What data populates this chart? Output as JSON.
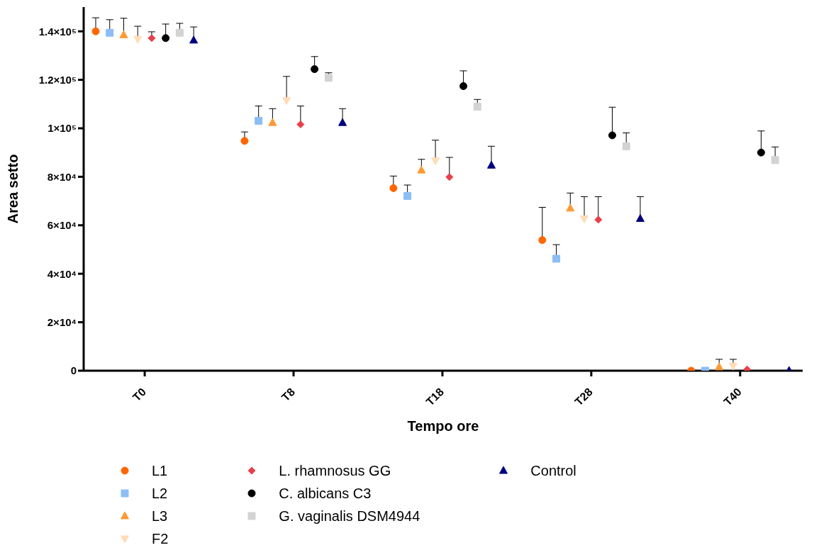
{
  "chart_data": {
    "type": "scatter",
    "xlabel": "Tempo ore",
    "ylabel": "Area setto",
    "categories": [
      "T0",
      "T8",
      "T18",
      "T28",
      "T40"
    ],
    "ylim": [
      0,
      150000
    ],
    "yticks": [
      0,
      {
        "value": 20000,
        "label": "2×10⁴"
      },
      {
        "value": 40000,
        "label": "4×10⁴"
      },
      {
        "value": 60000,
        "label": "6×10⁴"
      },
      {
        "value": 80000,
        "label": "8×10⁴"
      },
      {
        "value": 100000,
        "label": "1×10⁵"
      },
      {
        "value": 120000,
        "label": "1.2×10⁵"
      },
      {
        "value": 140000,
        "label": "1.4×10⁵"
      }
    ],
    "legend": "bottom",
    "series": [
      {
        "name": "L1",
        "color": "#ff6600",
        "marker": "circle",
        "values": [
          140000,
          94800,
          75300,
          53900,
          0
        ],
        "errors": [
          [
            140000,
            145600
          ],
          [
            94800,
            98500
          ],
          [
            75300,
            80300
          ],
          [
            53900,
            67400
          ],
          null
        ]
      },
      {
        "name": "L2",
        "color": "#8cbdf5",
        "marker": "square",
        "values": [
          139400,
          103100,
          72100,
          46200,
          0
        ],
        "errors": [
          [
            139400,
            144800
          ],
          [
            103100,
            109200
          ],
          [
            72100,
            76600
          ],
          [
            46200,
            52000
          ],
          null
        ]
      },
      {
        "name": "L3",
        "color": "#ff9933",
        "marker": "triangle",
        "values": [
          138500,
          102300,
          82700,
          67000,
          1500
        ],
        "errors": [
          [
            138500,
            145400
          ],
          [
            102300,
            108100
          ],
          [
            82700,
            87200
          ],
          [
            67000,
            73300
          ],
          [
            1500,
            4700
          ]
        ]
      },
      {
        "name": "F2",
        "color": "#ffdcb8",
        "marker": "triangle-down",
        "values": [
          136800,
          111500,
          86600,
          62700,
          2000
        ],
        "errors": [
          [
            136800,
            142100
          ],
          [
            111500,
            121400
          ],
          [
            86600,
            95100
          ],
          [
            62700,
            71800
          ],
          [
            2000,
            4700
          ]
        ]
      },
      {
        "name": "L. rhamnosus GG",
        "color": "#e8404a",
        "marker": "diamond",
        "values": [
          137200,
          101600,
          79900,
          62300,
          500
        ],
        "errors": [
          [
            137200,
            139800
          ],
          [
            101600,
            109200
          ],
          [
            79900,
            88000
          ],
          [
            62300,
            71800
          ],
          null
        ]
      },
      {
        "name": "C. albicans C3",
        "color": "#000000",
        "marker": "circle",
        "values": [
          137200,
          124400,
          117400,
          97100,
          90000
        ],
        "errors": [
          [
            137200,
            143000
          ],
          [
            124400,
            129600
          ],
          [
            117400,
            123700
          ],
          [
            97100,
            108700
          ],
          [
            90000,
            98900
          ]
        ]
      },
      {
        "name": "G. vaginalis  DSM4944",
        "color": "#d3d3d3",
        "marker": "square",
        "values": [
          139400,
          120800,
          108900,
          92600,
          86900
        ],
        "errors": [
          [
            139400,
            143300
          ],
          [
            120800,
            122900
          ],
          [
            108900,
            111900
          ],
          [
            92600,
            98100
          ],
          [
            86900,
            92300
          ]
        ]
      },
      {
        "name": "Control",
        "color": "#000080",
        "marker": "triangle",
        "values": [
          136300,
          102300,
          84700,
          62700,
          0
        ],
        "errors": [
          [
            136300,
            141800
          ],
          [
            102300,
            108100
          ],
          [
            84700,
            92600
          ],
          [
            62700,
            71800
          ],
          null
        ]
      }
    ]
  }
}
